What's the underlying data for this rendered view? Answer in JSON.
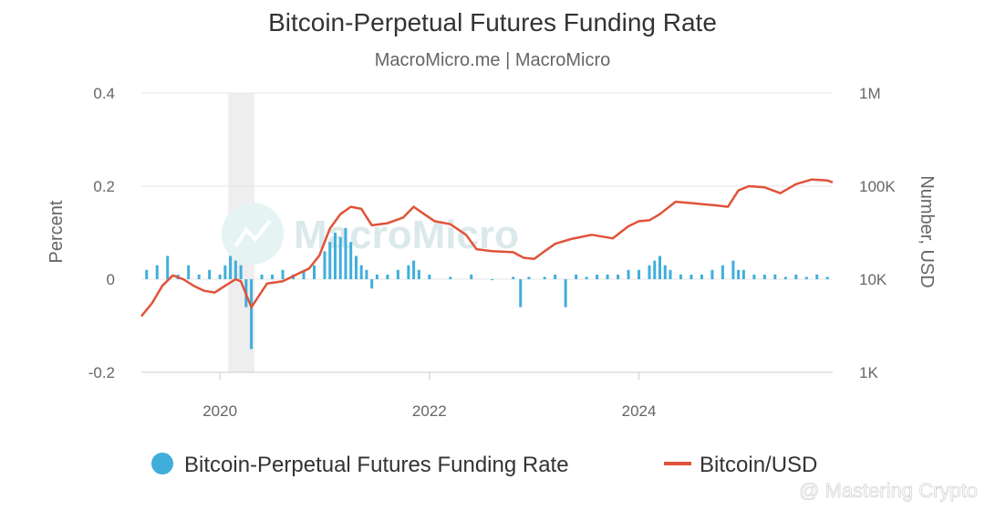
{
  "title": "Bitcoin-Perpetual Futures Funding Rate",
  "subtitle": "MacroMicro.me | MacroMicro",
  "watermark": "MacroMicro",
  "credit": "@ Mastering Crypto",
  "colors": {
    "funding": "#40aedb",
    "price": "#e0533a",
    "grid": "#e6e6e6",
    "recession_band": "#eeeeee"
  },
  "chart_data": {
    "type": "bar+line",
    "x_ticks": [
      "2020",
      "2022",
      "2024"
    ],
    "x_range": [
      2019.25,
      2025.85
    ],
    "left_axis": {
      "label": "Percent",
      "ticks": [
        "0.4",
        "0.2",
        "0",
        "-0.2"
      ],
      "range": [
        -0.2,
        0.4
      ]
    },
    "right_axis": {
      "label": "Number, USD",
      "ticks": [
        "1M",
        "100K",
        "10K",
        "1K"
      ],
      "range": [
        1000,
        1000000
      ],
      "scale": "log"
    },
    "shaded_period": [
      2020.08,
      2020.33
    ],
    "series": [
      {
        "name": "Bitcoin-Perpetual Futures Funding Rate",
        "type": "bar",
        "axis": "left",
        "x": [
          2019.3,
          2019.4,
          2019.5,
          2019.6,
          2019.7,
          2019.8,
          2019.9,
          2020.0,
          2020.05,
          2020.1,
          2020.15,
          2020.2,
          2020.25,
          2020.3,
          2020.4,
          2020.5,
          2020.6,
          2020.7,
          2020.8,
          2020.9,
          2021.0,
          2021.05,
          2021.1,
          2021.15,
          2021.2,
          2021.25,
          2021.3,
          2021.35,
          2021.4,
          2021.45,
          2021.5,
          2021.6,
          2021.7,
          2021.8,
          2021.85,
          2021.9,
          2022.0,
          2022.2,
          2022.4,
          2022.6,
          2022.8,
          2022.87,
          2022.95,
          2023.1,
          2023.2,
          2023.3,
          2023.4,
          2023.5,
          2023.6,
          2023.7,
          2023.8,
          2023.9,
          2024.0,
          2024.1,
          2024.15,
          2024.2,
          2024.25,
          2024.3,
          2024.4,
          2024.5,
          2024.6,
          2024.7,
          2024.8,
          2024.9,
          2024.95,
          2025.0,
          2025.1,
          2025.2,
          2025.3,
          2025.4,
          2025.5,
          2025.6,
          2025.7,
          2025.8
        ],
        "values": [
          0.02,
          0.03,
          0.05,
          0.01,
          0.03,
          0.01,
          0.02,
          0.01,
          0.03,
          0.05,
          0.04,
          0.03,
          -0.06,
          -0.15,
          0.01,
          0.01,
          0.02,
          0.01,
          0.02,
          0.03,
          0.06,
          0.08,
          0.1,
          0.09,
          0.11,
          0.08,
          0.05,
          0.03,
          0.02,
          -0.02,
          0.01,
          0.01,
          0.02,
          0.03,
          0.04,
          0.02,
          0.01,
          0.005,
          0.01,
          -0.002,
          0.005,
          -0.06,
          0.005,
          0.005,
          0.01,
          -0.06,
          0.01,
          0.005,
          0.01,
          0.01,
          0.01,
          0.02,
          0.02,
          0.03,
          0.04,
          0.05,
          0.03,
          0.02,
          0.01,
          0.01,
          0.01,
          0.02,
          0.03,
          0.04,
          0.02,
          0.02,
          0.01,
          0.01,
          0.01,
          0.005,
          0.01,
          0.005,
          0.01,
          0.005
        ]
      },
      {
        "name": "Bitcoin/USD",
        "type": "line",
        "axis": "right",
        "x": [
          2019.25,
          2019.35,
          2019.45,
          2019.55,
          2019.65,
          2019.75,
          2019.85,
          2019.95,
          2020.05,
          2020.15,
          2020.2,
          2020.3,
          2020.45,
          2020.6,
          2020.75,
          2020.85,
          2020.95,
          2021.05,
          2021.15,
          2021.25,
          2021.35,
          2021.45,
          2021.6,
          2021.75,
          2021.85,
          2021.95,
          2022.05,
          2022.2,
          2022.35,
          2022.45,
          2022.6,
          2022.8,
          2022.9,
          2023.0,
          2023.1,
          2023.2,
          2023.35,
          2023.55,
          2023.75,
          2023.9,
          2024.0,
          2024.1,
          2024.2,
          2024.35,
          2024.55,
          2024.75,
          2024.85,
          2024.95,
          2025.05,
          2025.2,
          2025.35,
          2025.5,
          2025.65,
          2025.8,
          2025.85
        ],
        "values": [
          4000,
          5500,
          8500,
          11000,
          10000,
          8500,
          7500,
          7200,
          8500,
          10000,
          9500,
          5000,
          9000,
          9500,
          11500,
          13000,
          18000,
          35000,
          50000,
          60000,
          57000,
          38000,
          40000,
          46000,
          60000,
          50000,
          42000,
          39000,
          30000,
          21000,
          20000,
          19500,
          17000,
          16500,
          20000,
          24000,
          27000,
          30000,
          27500,
          37000,
          42000,
          43000,
          50000,
          68000,
          65000,
          62000,
          60000,
          90000,
          100000,
          97000,
          84000,
          105000,
          118000,
          115000,
          110000
        ]
      }
    ],
    "legend": {
      "position": "bottom",
      "items": [
        "Bitcoin-Perpetual Futures Funding Rate",
        "Bitcoin/USD"
      ]
    }
  }
}
